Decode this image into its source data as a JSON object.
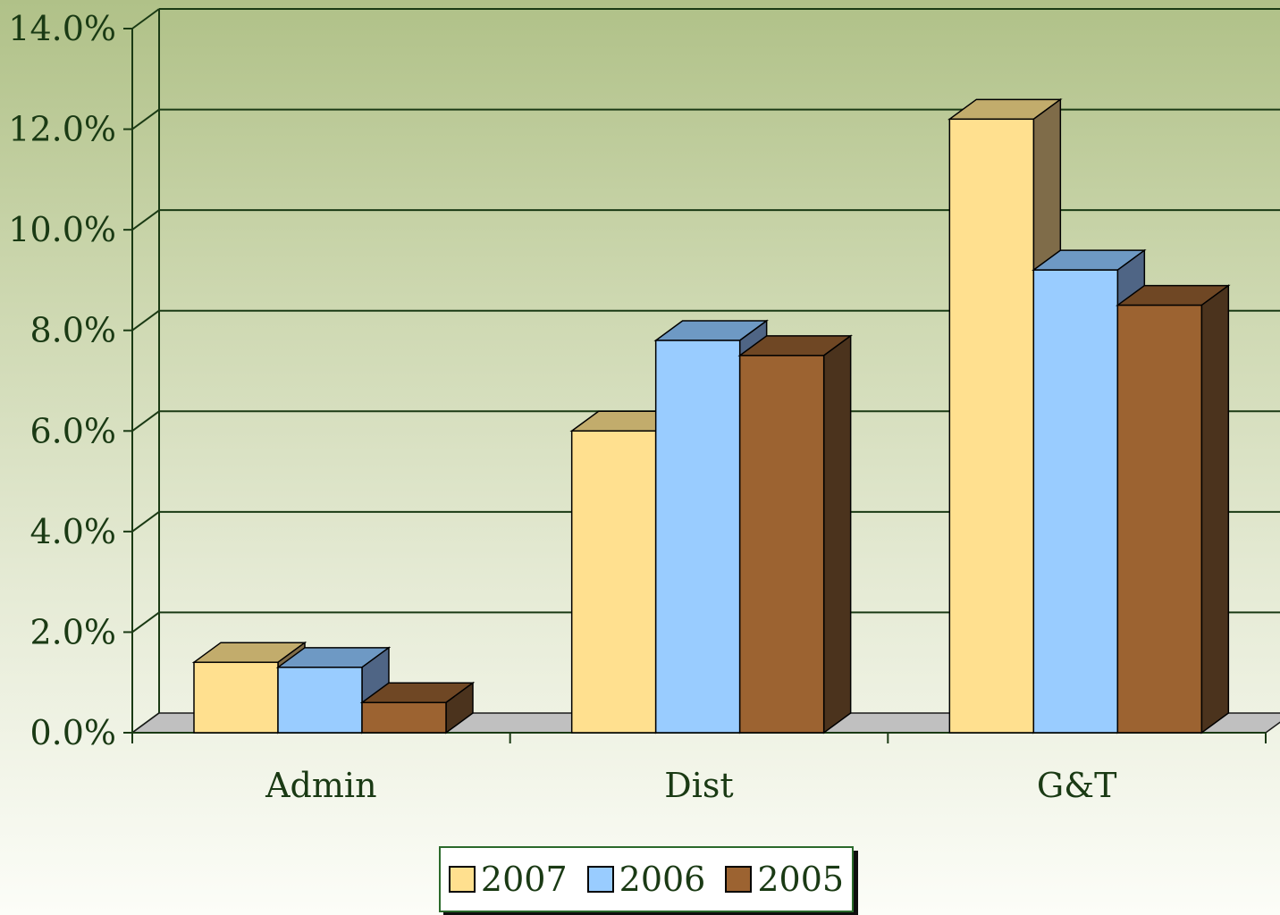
{
  "chart_data": {
    "type": "bar",
    "categories": [
      "Admin",
      "Dist",
      "G&T"
    ],
    "series": [
      {
        "name": "2007",
        "values": [
          1.4,
          6.0,
          12.2
        ],
        "color": "#ffe08f",
        "top_color": "#c2ac6c",
        "side_color": "#7f6c49"
      },
      {
        "name": "2006",
        "values": [
          1.3,
          7.8,
          9.2
        ],
        "color": "#99ccff",
        "top_color": "#6e99c4",
        "side_color": "#4f6585"
      },
      {
        "name": "2005",
        "values": [
          0.6,
          7.5,
          8.5
        ],
        "color": "#9c6331",
        "top_color": "#6f4724",
        "side_color": "#4b331d"
      }
    ],
    "yticks": [
      "0.0%",
      "2.0%",
      "4.0%",
      "6.0%",
      "8.0%",
      "10.0%",
      "12.0%",
      "14.0%"
    ],
    "ylim": [
      0,
      14
    ],
    "grid": true,
    "legend_position": "bottom",
    "title": "",
    "xlabel": "",
    "ylabel": ""
  }
}
